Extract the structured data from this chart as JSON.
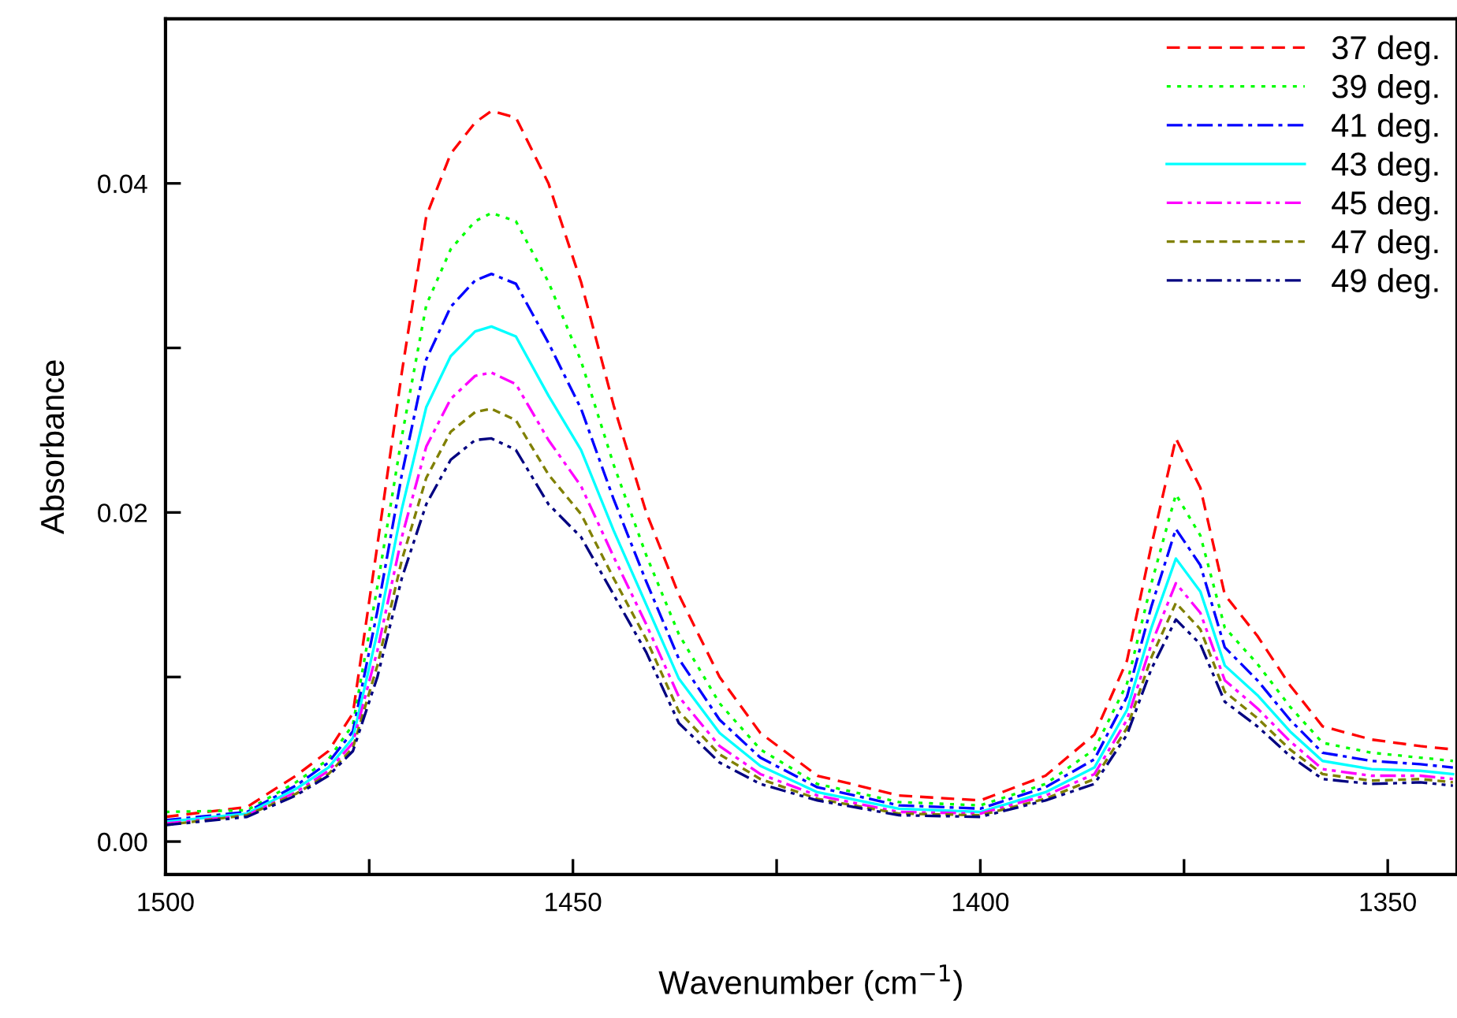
{
  "chart_data": {
    "type": "line",
    "xlabel": "Wavenumber (cm$^{−1}$)",
    "ylabel": "Absorbance",
    "x": [
      1500,
      1490,
      1484,
      1480,
      1477,
      1474,
      1471,
      1468,
      1465,
      1462,
      1460,
      1457,
      1453,
      1449,
      1445,
      1441,
      1437,
      1432,
      1427,
      1420,
      1410,
      1400,
      1392,
      1386,
      1382,
      1379,
      1376,
      1373,
      1370,
      1366,
      1362,
      1358,
      1352,
      1346,
      1342
    ],
    "xlim": [
      1500,
      1341.5
    ],
    "ylim": [
      -0.002,
      0.05
    ],
    "xticks": [
      1500,
      {
        "value": 1475,
        "label": null
      },
      1450,
      {
        "value": 1425,
        "label": null
      },
      1400,
      {
        "value": 1375,
        "label": null
      },
      1350
    ],
    "yticks": [
      {
        "value": 0,
        "label": "0.00"
      },
      {
        "value": 0.01,
        "label": null
      },
      {
        "value": 0.02,
        "label": "0.02"
      },
      {
        "value": 0.03,
        "label": null
      },
      {
        "value": 0.04,
        "label": "0.04"
      }
    ],
    "grid": false,
    "legend": "top right",
    "series": [
      {
        "name": "37 deg.",
        "color": "#ff0000",
        "line_style": "dashed",
        "values": [
          0.0015,
          0.0021,
          0.004,
          0.0055,
          0.0078,
          0.018,
          0.0285,
          0.038,
          0.0418,
          0.0437,
          0.0444,
          0.044,
          0.04,
          0.034,
          0.0265,
          0.02,
          0.015,
          0.01,
          0.0066,
          0.004,
          0.0028,
          0.0025,
          0.004,
          0.0065,
          0.011,
          0.018,
          0.0245,
          0.0215,
          0.015,
          0.0125,
          0.0095,
          0.007,
          0.0062,
          0.0058,
          0.0056
        ]
      },
      {
        "name": "39 deg.",
        "color": "#00ff00",
        "line_style": "dotted",
        "values": [
          0.0018,
          0.0019,
          0.0036,
          0.005,
          0.0071,
          0.0155,
          0.0246,
          0.0326,
          0.036,
          0.0377,
          0.0382,
          0.0377,
          0.034,
          0.0292,
          0.0229,
          0.0174,
          0.0126,
          0.0084,
          0.0056,
          0.0035,
          0.0024,
          0.0022,
          0.0035,
          0.0056,
          0.0096,
          0.0157,
          0.0211,
          0.0186,
          0.013,
          0.0108,
          0.0082,
          0.006,
          0.0054,
          0.0051,
          0.0049
        ]
      },
      {
        "name": "41 deg.",
        "color": "#0000ff",
        "line_style": "dashdot",
        "values": [
          0.0013,
          0.0018,
          0.0034,
          0.0048,
          0.0067,
          0.014,
          0.0223,
          0.0293,
          0.0325,
          0.0341,
          0.0345,
          0.0339,
          0.0303,
          0.0263,
          0.0208,
          0.0158,
          0.0111,
          0.0074,
          0.0051,
          0.0033,
          0.0022,
          0.002,
          0.0033,
          0.005,
          0.0088,
          0.0143,
          0.019,
          0.0168,
          0.0118,
          0.0098,
          0.0074,
          0.0054,
          0.0049,
          0.0047,
          0.0045
        ]
      },
      {
        "name": "43 deg.",
        "color": "#00ffff",
        "line_style": "solid",
        "values": [
          0.0012,
          0.0017,
          0.0032,
          0.0045,
          0.0063,
          0.0127,
          0.0202,
          0.0264,
          0.0295,
          0.031,
          0.0313,
          0.0307,
          0.0271,
          0.0238,
          0.0189,
          0.0144,
          0.0099,
          0.0066,
          0.0046,
          0.003,
          0.002,
          0.0018,
          0.003,
          0.0045,
          0.008,
          0.013,
          0.0172,
          0.0152,
          0.0107,
          0.0089,
          0.0067,
          0.0049,
          0.0044,
          0.0043,
          0.0041
        ]
      },
      {
        "name": "45 deg.",
        "color": "#ff00ff",
        "line_style": "dashdotdot",
        "values": [
          0.0011,
          0.0016,
          0.003,
          0.0043,
          0.006,
          0.0116,
          0.0185,
          0.024,
          0.0269,
          0.0283,
          0.0285,
          0.0278,
          0.0244,
          0.0216,
          0.0173,
          0.0132,
          0.0088,
          0.0058,
          0.0041,
          0.0028,
          0.0018,
          0.0017,
          0.0028,
          0.0041,
          0.0074,
          0.012,
          0.0157,
          0.0139,
          0.0098,
          0.0081,
          0.0061,
          0.0044,
          0.004,
          0.004,
          0.0038
        ]
      },
      {
        "name": "47 deg.",
        "color": "#808000",
        "line_style": "shortdash",
        "values": [
          0.001,
          0.0016,
          0.0029,
          0.0041,
          0.0057,
          0.0107,
          0.0171,
          0.0221,
          0.0249,
          0.0261,
          0.0263,
          0.0256,
          0.0223,
          0.0199,
          0.016,
          0.0123,
          0.0079,
          0.0053,
          0.0038,
          0.0026,
          0.0017,
          0.0016,
          0.0026,
          0.0038,
          0.0069,
          0.0112,
          0.0145,
          0.0129,
          0.0091,
          0.0075,
          0.0056,
          0.0041,
          0.0037,
          0.0038,
          0.0036
        ]
      },
      {
        "name": "49 deg.",
        "color": "#000080",
        "line_style": "dashdotdot",
        "values": [
          0.001,
          0.0015,
          0.0028,
          0.004,
          0.0055,
          0.01,
          0.016,
          0.0205,
          0.0232,
          0.0244,
          0.0245,
          0.0238,
          0.0205,
          0.0185,
          0.015,
          0.0115,
          0.0072,
          0.0048,
          0.0035,
          0.0025,
          0.0016,
          0.0015,
          0.0025,
          0.0035,
          0.0065,
          0.0105,
          0.0135,
          0.012,
          0.0085,
          0.007,
          0.0052,
          0.0038,
          0.0035,
          0.0036,
          0.0034
        ]
      }
    ]
  }
}
